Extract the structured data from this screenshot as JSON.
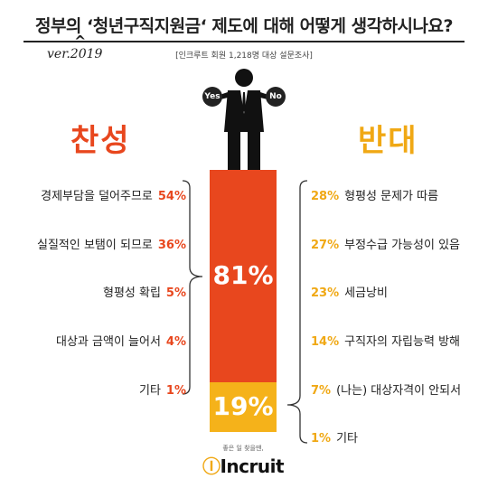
{
  "header": {
    "title": "정부의 ‘청년구직지원금‘ 제도에 대해 어떻게 생각하시나요?",
    "version_note": "ver.2019",
    "survey_note": "[인크루트 회원 1,218명 대상 설문조사]"
  },
  "figure": {
    "yes_label": "Yes",
    "no_label": "No"
  },
  "chart_data": {
    "type": "bar",
    "stacked": true,
    "categories": [
      "찬성",
      "반대"
    ],
    "values": [
      81,
      19
    ],
    "value_labels": [
      "81%",
      "19%"
    ],
    "colors": {
      "agree": "#e8471e",
      "disagree": "#f5b21a"
    },
    "agree": {
      "label": "찬성",
      "reasons": [
        {
          "text": "경제부담을 덜어주므로",
          "value": 54,
          "label": "54%"
        },
        {
          "text": "실질적인 보탬이 되므로",
          "value": 36,
          "label": "36%"
        },
        {
          "text": "형평성 확립",
          "value": 5,
          "label": "5%"
        },
        {
          "text": "대상과 금액이 늘어서",
          "value": 4,
          "label": "4%"
        },
        {
          "text": "기타",
          "value": 1,
          "label": "1%"
        }
      ]
    },
    "disagree": {
      "label": "반대",
      "reasons": [
        {
          "text": "형평성 문제가 따름",
          "value": 28,
          "label": "28%"
        },
        {
          "text": "부정수급 가능성이 있음",
          "value": 27,
          "label": "27%"
        },
        {
          "text": "세금낭비",
          "value": 23,
          "label": "23%"
        },
        {
          "text": "구직자의 자립능력 방해",
          "value": 14,
          "label": "14%"
        },
        {
          "text": "(나는) 대상자격이 안되서",
          "value": 7,
          "label": "7%"
        },
        {
          "text": "기타",
          "value": 1,
          "label": "1%"
        }
      ]
    }
  },
  "footer": {
    "slogan": "좋은 일 찾을땐,",
    "logo_prefix": "Ⓘ",
    "logo_text": "Incruit"
  }
}
